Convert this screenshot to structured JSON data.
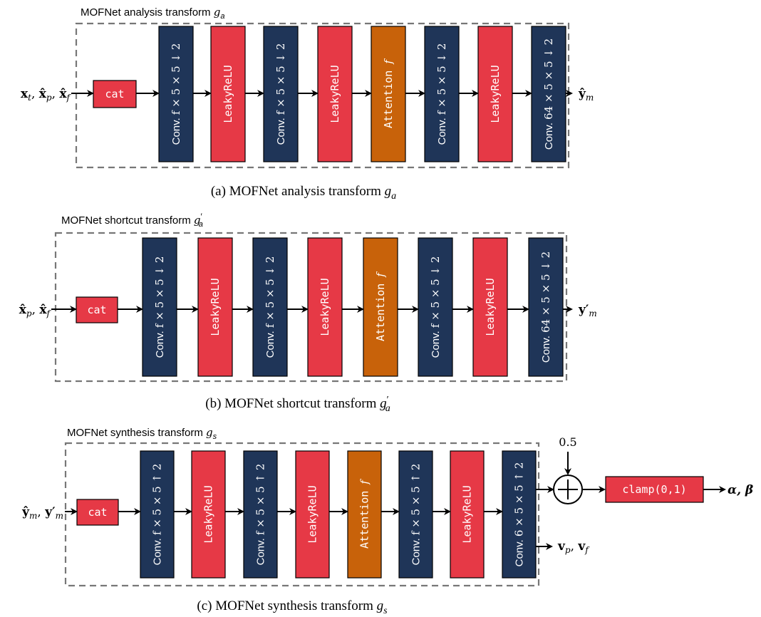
{
  "colors": {
    "conv": "#1f3558",
    "activation": "#e63946",
    "attention": "#c8620a",
    "cat": "#e63946",
    "clamp": "#e63946"
  },
  "panels": [
    {
      "id": "analysis",
      "title_text": "MOFNet analysis transform",
      "title_symbol": "g",
      "title_sub": "a",
      "title_prime": "",
      "input_label": "x_t, x̂_p, x̂_f",
      "cat_label": "cat",
      "blocks": [
        {
          "kind": "conv",
          "word": "Conv.",
          "spec": "f × 5 × 5 ↓ 2"
        },
        {
          "kind": "activation",
          "label": "LeakyReLU"
        },
        {
          "kind": "conv",
          "word": "Conv.",
          "spec": "f × 5 × 5 ↓ 2"
        },
        {
          "kind": "activation",
          "label": "LeakyReLU"
        },
        {
          "kind": "attention",
          "label": "Attention",
          "symbol": "f"
        },
        {
          "kind": "conv",
          "word": "Conv.",
          "spec": "f × 5 × 5 ↓ 2"
        },
        {
          "kind": "activation",
          "label": "LeakyReLU"
        },
        {
          "kind": "conv",
          "word": "Conv.",
          "spec": "64 × 5 × 5 ↓ 2"
        }
      ],
      "output_label": "ŷ_m",
      "caption_prefix": "(a) MOFNet analysis transform",
      "caption_symbol": "g",
      "caption_sub": "a",
      "caption_prime": ""
    },
    {
      "id": "shortcut",
      "title_text": "MOFNet shortcut transform",
      "title_symbol": "g",
      "title_sub": "a",
      "title_prime": "′",
      "input_label": "x̂_p, x̂_f",
      "cat_label": "cat",
      "blocks": [
        {
          "kind": "conv",
          "word": "Conv.",
          "spec": "f × 5 × 5 ↓ 2"
        },
        {
          "kind": "activation",
          "label": "LeakyReLU"
        },
        {
          "kind": "conv",
          "word": "Conv.",
          "spec": "f × 5 × 5 ↓ 2"
        },
        {
          "kind": "activation",
          "label": "LeakyReLU"
        },
        {
          "kind": "attention",
          "label": "Attention",
          "symbol": "f"
        },
        {
          "kind": "conv",
          "word": "Conv.",
          "spec": "f × 5 × 5 ↓ 2"
        },
        {
          "kind": "activation",
          "label": "LeakyReLU"
        },
        {
          "kind": "conv",
          "word": "Conv.",
          "spec": "64 × 5 × 5 ↓ 2"
        }
      ],
      "output_label": "y′_m",
      "caption_prefix": "(b) MOFNet shortcut transform",
      "caption_symbol": "g",
      "caption_sub": "a",
      "caption_prime": "′"
    },
    {
      "id": "synthesis",
      "title_text": "MOFNet synthesis transform",
      "title_symbol": "g",
      "title_sub": "s",
      "title_prime": "",
      "input_label": "ŷ_m, y′_m",
      "cat_label": "cat",
      "blocks": [
        {
          "kind": "conv",
          "word": "Conv.",
          "spec": "f × 5 × 5 ↑ 2"
        },
        {
          "kind": "activation",
          "label": "LeakyReLU"
        },
        {
          "kind": "conv",
          "word": "Conv.",
          "spec": "f × 5 × 5 ↑ 2"
        },
        {
          "kind": "activation",
          "label": "LeakyReLU"
        },
        {
          "kind": "attention",
          "label": "Attention",
          "symbol": "f"
        },
        {
          "kind": "conv",
          "word": "Conv.",
          "spec": "f × 5 × 5 ↑ 2"
        },
        {
          "kind": "activation",
          "label": "LeakyReLU"
        },
        {
          "kind": "conv",
          "word": "Conv.",
          "spec": "6 × 5 × 5 ↑ 2"
        }
      ],
      "output_label": "v_p, v_f",
      "caption_prefix": "(c) MOFNet synthesis transform",
      "caption_symbol": "g",
      "caption_sub": "s",
      "caption_prime": "",
      "extra": {
        "offset_value": "0.5",
        "plus_symbol": "+",
        "clamp_label": "clamp(0,1)",
        "clamp_output": "α, β"
      }
    }
  ]
}
